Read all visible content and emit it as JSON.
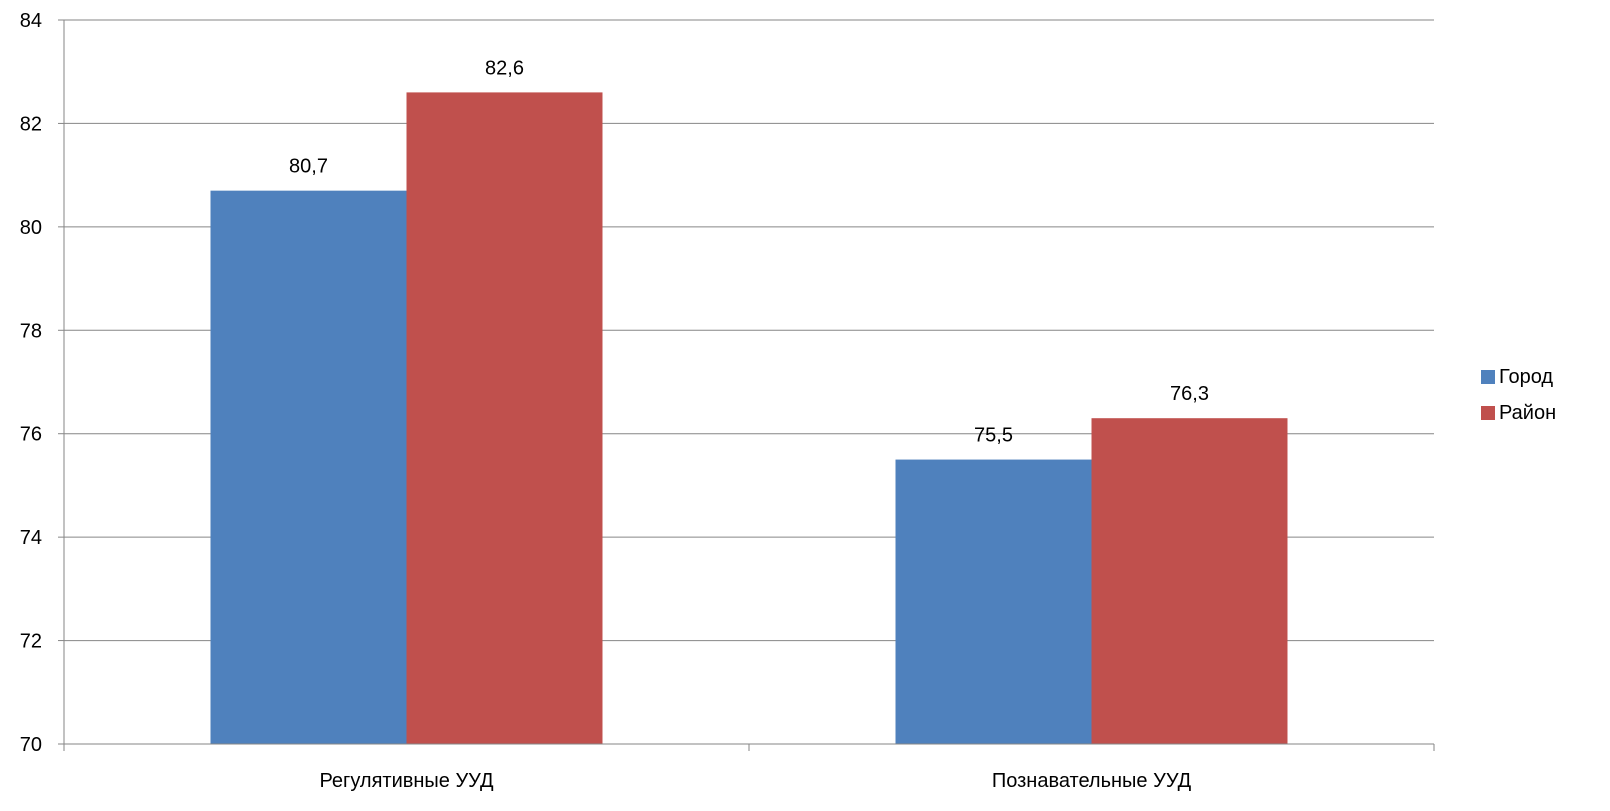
{
  "chart_data": {
    "type": "bar",
    "categories": [
      "Регулятивные УУД",
      "Познавательные УУД"
    ],
    "series": [
      {
        "name": "Город",
        "values": [
          80.7,
          75.5
        ],
        "labels": [
          "80,7",
          "75,5"
        ],
        "color": "#4F81BD"
      },
      {
        "name": "Район",
        "values": [
          82.6,
          76.3
        ],
        "labels": [
          "82,6",
          "76,3"
        ],
        "color": "#C0504D"
      }
    ],
    "ylim": [
      70,
      84
    ],
    "yticks": [
      70,
      72,
      74,
      76,
      78,
      80,
      82,
      84
    ],
    "title": "",
    "xlabel": "",
    "ylabel": "",
    "grid": true,
    "legend_position": "right"
  }
}
